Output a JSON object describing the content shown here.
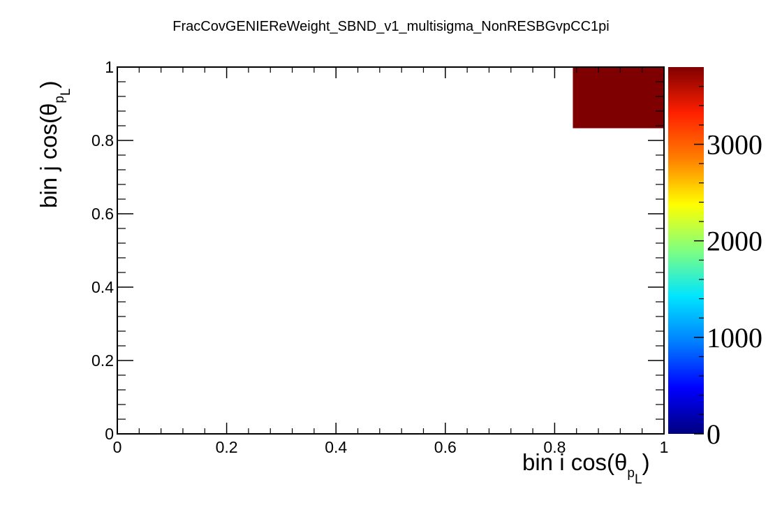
{
  "chart_data": {
    "type": "heatmap",
    "title": "FracCovGENIEReWeight_SBND_v1_multisigma_NonRESBGvpCC1pi",
    "xlabel": {
      "main": "bin i cos(θ",
      "sub": "p",
      "sub2": "L",
      "close": ")"
    },
    "ylabel": {
      "main": "bin j cos(θ",
      "sub": "p",
      "sub2": "L",
      "close": ")"
    },
    "xlim": [
      0,
      1
    ],
    "ylim": [
      0,
      1
    ],
    "x_ticks": [
      "0",
      "0.2",
      "0.4",
      "0.6",
      "0.8",
      "1"
    ],
    "y_ticks": [
      "0",
      "0.2",
      "0.4",
      "0.6",
      "0.8",
      "1"
    ],
    "zlim": [
      0,
      3800
    ],
    "z_ticks": [
      "0",
      "1000",
      "2000",
      "3000"
    ],
    "cells": [
      {
        "x0": 0.8333,
        "x1": 1.0,
        "y0": 0.8333,
        "y1": 1.0,
        "value": 3800
      }
    ],
    "colormap": [
      "#00007f",
      "#0000ff",
      "#007fff",
      "#00e5ff",
      "#7fff7f",
      "#ffff00",
      "#ff7f00",
      "#ff2000",
      "#7f0000"
    ],
    "grid": false
  }
}
